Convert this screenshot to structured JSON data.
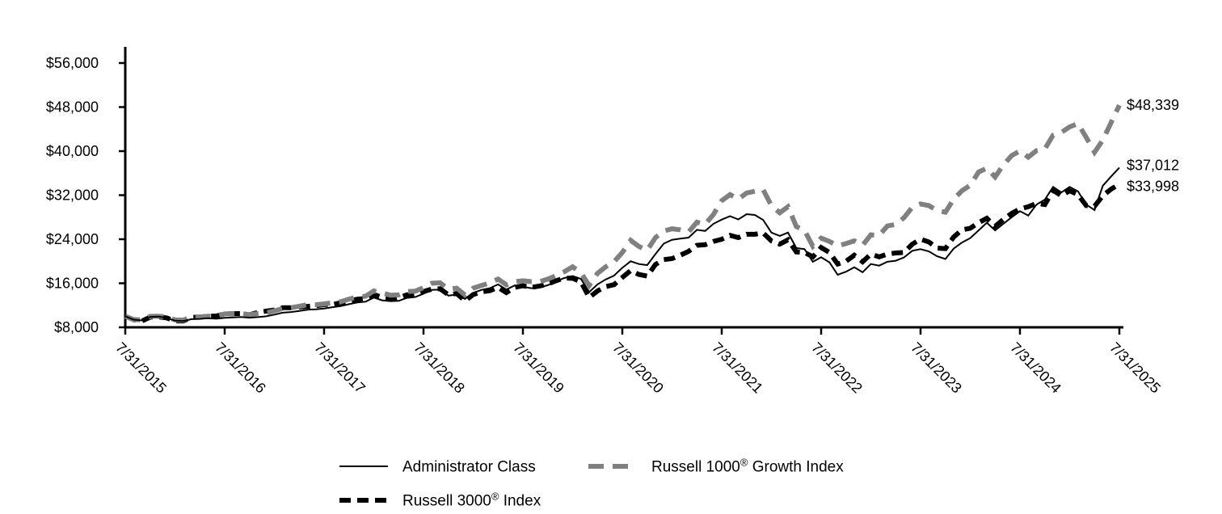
{
  "chart_data": {
    "type": "line",
    "title": "",
    "y_axis": {
      "tick_labels": [
        "$56,000",
        "$48,000",
        "$40,000",
        "$32,000",
        "$24,000",
        "$16,000",
        "$8,000"
      ],
      "tick_values": [
        56000,
        48000,
        40000,
        32000,
        24000,
        16000,
        8000
      ],
      "min": 8000,
      "max": 56000,
      "grid": false
    },
    "x_axis": {
      "tick_labels": [
        "7/31/2015",
        "7/31/2016",
        "7/31/2017",
        "7/31/2018",
        "7/31/2019",
        "7/31/2020",
        "7/31/2021",
        "7/31/2022",
        "7/31/2023",
        "7/31/2024",
        "7/31/2025"
      ],
      "points_per_tick": 12,
      "rotation_deg": 45
    },
    "legend": {
      "position": "bottom",
      "entries": [
        "Administrator Class",
        "Russell 1000® Growth Index",
        "Russell 3000® Index"
      ]
    },
    "series": [
      {
        "name": "Administrator Class",
        "color": "#000000",
        "style": "solid",
        "stroke_width": 2,
        "dash": null,
        "end_label": "$37,012",
        "end_value": 37012,
        "values": [
          10000,
          9400,
          9250,
          9900,
          9950,
          9700,
          9200,
          9150,
          9480,
          9520,
          9660,
          9560,
          9720,
          9800,
          9860,
          9750,
          9850,
          10000,
          10300,
          10650,
          10780,
          10960,
          11200,
          11260,
          11420,
          11650,
          11850,
          12200,
          12500,
          12650,
          13400,
          12900,
          12750,
          12800,
          13350,
          13500,
          14100,
          14800,
          14850,
          13750,
          13950,
          13150,
          14250,
          14800,
          15100,
          15800,
          14850,
          15600,
          15350,
          15100,
          15250,
          15650,
          16350,
          16950,
          17300,
          16800,
          14400,
          15800,
          16700,
          17400,
          18800,
          20000,
          19500,
          19300,
          21300,
          23200,
          23900,
          24100,
          24300,
          25700,
          25500,
          26800,
          27570,
          28200,
          27600,
          28550,
          28400,
          27500,
          25200,
          24600,
          25200,
          22400,
          22200,
          19900,
          20730,
          19800,
          17540,
          18100,
          18900,
          18000,
          19500,
          19200,
          19900,
          20100,
          20700,
          21900,
          22190,
          21800,
          20900,
          20400,
          22300,
          23400,
          24200,
          25600,
          27000,
          25600,
          26800,
          28000,
          29100,
          28300,
          30300,
          31200,
          33500,
          32500,
          33500,
          32700,
          30300,
          29300,
          33700,
          35400,
          37012
        ]
      },
      {
        "name": "Russell 1000® Growth Index",
        "color": "#808080",
        "style": "dashed",
        "stroke_width": 6,
        "dash": [
          19,
          11
        ],
        "end_label": "$48,339",
        "end_value": 48339,
        "values": [
          10000,
          9420,
          9300,
          10000,
          10030,
          9900,
          9350,
          9310,
          9940,
          9850,
          10020,
          9970,
          10440,
          10480,
          10530,
          10280,
          10500,
          10620,
          10980,
          11440,
          11560,
          11820,
          12130,
          12090,
          12250,
          12480,
          12640,
          13130,
          13530,
          13630,
          14600,
          14230,
          13840,
          13890,
          14500,
          14560,
          15200,
          16000,
          16090,
          14950,
          15100,
          13870,
          15100,
          15600,
          16050,
          16760,
          15700,
          16300,
          16450,
          16300,
          16300,
          16750,
          17400,
          18100,
          19000,
          17900,
          15600,
          17800,
          19000,
          19900,
          21600,
          23800,
          22700,
          22000,
          24300,
          25500,
          25900,
          25700,
          25300,
          27100,
          26700,
          28500,
          31000,
          32100,
          31300,
          32400,
          32700,
          33000,
          30100,
          28800,
          29900,
          26300,
          25600,
          22700,
          24200,
          23600,
          22800,
          23200,
          23700,
          22900,
          24800,
          24700,
          26400,
          26700,
          27900,
          29800,
          30400,
          30100,
          29200,
          28900,
          31300,
          32800,
          33800,
          36200,
          36900,
          35300,
          37500,
          39200,
          40050,
          38900,
          40100,
          40400,
          42900,
          43400,
          44400,
          45000,
          42500,
          39800,
          42000,
          45200,
          48339
        ]
      },
      {
        "name": "Russell 3000® Index",
        "color": "#000000",
        "style": "dashed",
        "stroke_width": 6,
        "dash": [
          14,
          8
        ],
        "end_label": "$33,998",
        "end_value": 33998,
        "values": [
          10000,
          9400,
          9130,
          9850,
          9910,
          9710,
          9160,
          9160,
          9800,
          9860,
          10040,
          10060,
          10450,
          10480,
          10500,
          10270,
          10720,
          10930,
          11140,
          11550,
          11560,
          11680,
          11800,
          11910,
          12130,
          12150,
          12450,
          12720,
          13110,
          13240,
          13950,
          13450,
          13250,
          13350,
          13900,
          14050,
          14500,
          14950,
          15000,
          13900,
          14150,
          12800,
          13950,
          14450,
          14650,
          15250,
          14300,
          15250,
          15550,
          15250,
          15500,
          15850,
          16450,
          16950,
          16900,
          16300,
          13400,
          14600,
          15400,
          15750,
          17050,
          18300,
          17600,
          17300,
          19400,
          20300,
          20480,
          21100,
          21800,
          22900,
          23000,
          23600,
          24000,
          24700,
          24300,
          24900,
          24900,
          25130,
          23700,
          23100,
          23900,
          21700,
          21600,
          20800,
          22500,
          21600,
          19500,
          20000,
          21100,
          19900,
          21300,
          20800,
          21300,
          21500,
          21600,
          23100,
          24000,
          23500,
          22400,
          22300,
          24400,
          25700,
          26000,
          27000,
          27800,
          26350,
          27600,
          28700,
          29500,
          29900,
          30500,
          30300,
          32900,
          31900,
          32800,
          32100,
          30100,
          30000,
          31900,
          33100,
          33998
        ]
      }
    ]
  },
  "colors": {
    "background": "#ffffff",
    "axis": "#000000",
    "administrator_class_line": "#000000",
    "russell_1000_growth_line": "#808080",
    "russell_3000_line": "#000000",
    "label_text": "#000000"
  }
}
